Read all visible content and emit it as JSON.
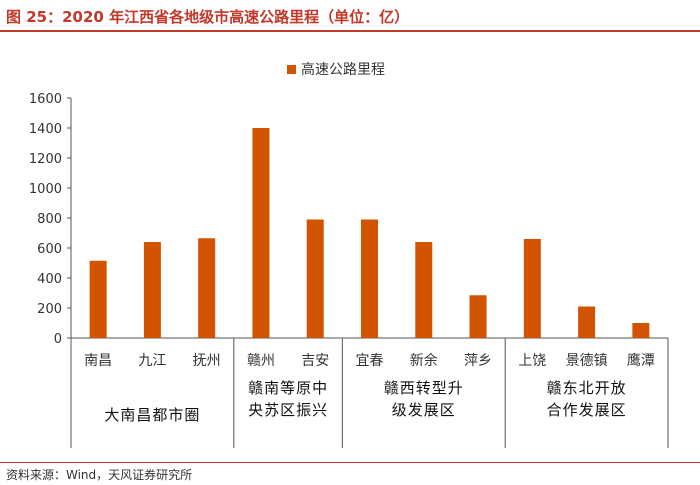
{
  "title": "图 25：2020 年江西省各地级市高速公路里程（单位：亿）",
  "source": "资料来源：Wind，天风证券研究所",
  "colors": {
    "bar": "#D35400",
    "title": "#c0392b",
    "axis": "#555555",
    "text": "#333333"
  },
  "chart_data": {
    "type": "bar",
    "categories": [
      "南昌",
      "九江",
      "抚州",
      "赣州",
      "吉安",
      "宜春",
      "新余",
      "萍乡",
      "上饶",
      "景德镇",
      "鹰潭"
    ],
    "series": [
      {
        "name": "高速公路里程",
        "values": [
          515,
          640,
          665,
          1400,
          790,
          790,
          640,
          285,
          660,
          210,
          100
        ]
      }
    ],
    "ylim": [
      0,
      1600
    ],
    "yticks": [
      0,
      200,
      400,
      600,
      800,
      1000,
      1200,
      1400,
      1600
    ],
    "legend_position": "top-center",
    "grid": false,
    "groups": [
      {
        "lines": [
          "大南昌都市圈"
        ],
        "start": 0,
        "end": 2
      },
      {
        "lines": [
          "赣南等原中",
          "央苏区振兴"
        ],
        "start": 3,
        "end": 4
      },
      {
        "lines": [
          "赣西转型升",
          "级发展区"
        ],
        "start": 5,
        "end": 7
      },
      {
        "lines": [
          "赣东北开放",
          "合作发展区"
        ],
        "start": 8,
        "end": 10
      }
    ]
  }
}
